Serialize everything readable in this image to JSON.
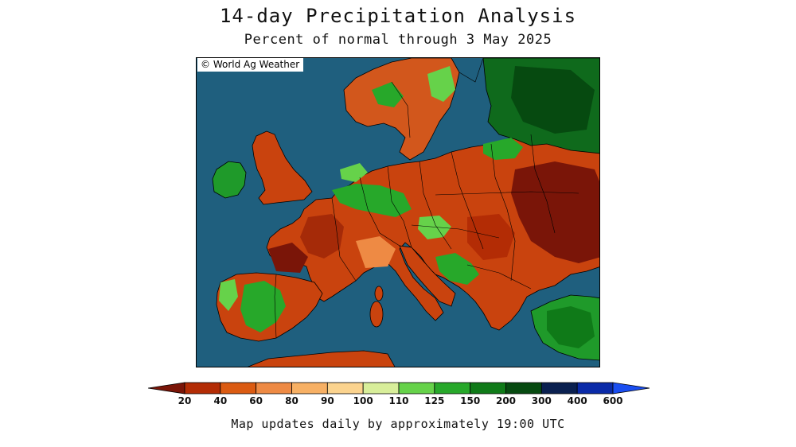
{
  "title": "14-day Precipitation Analysis",
  "subtitle": "Percent of normal through 3 May 2025",
  "credit": "© World Ag Weather",
  "footer": "Map updates daily by approximately 19:00 UTC",
  "colorbar": {
    "ticks": [
      "20",
      "40",
      "60",
      "80",
      "90",
      "100",
      "110",
      "125",
      "150",
      "200",
      "300",
      "400",
      "600"
    ],
    "colors": [
      "#7a1508",
      "#b32c05",
      "#db5b12",
      "#ee8a44",
      "#f7b064",
      "#fbd38e",
      "#d8ee9a",
      "#66d24a",
      "#27a82a",
      "#0f7a18",
      "#064a10",
      "#0a2050",
      "#0a2aa8",
      "#1a4ef0"
    ]
  },
  "colors": {
    "ocean": "#1f5f7e",
    "border": "#000000"
  }
}
